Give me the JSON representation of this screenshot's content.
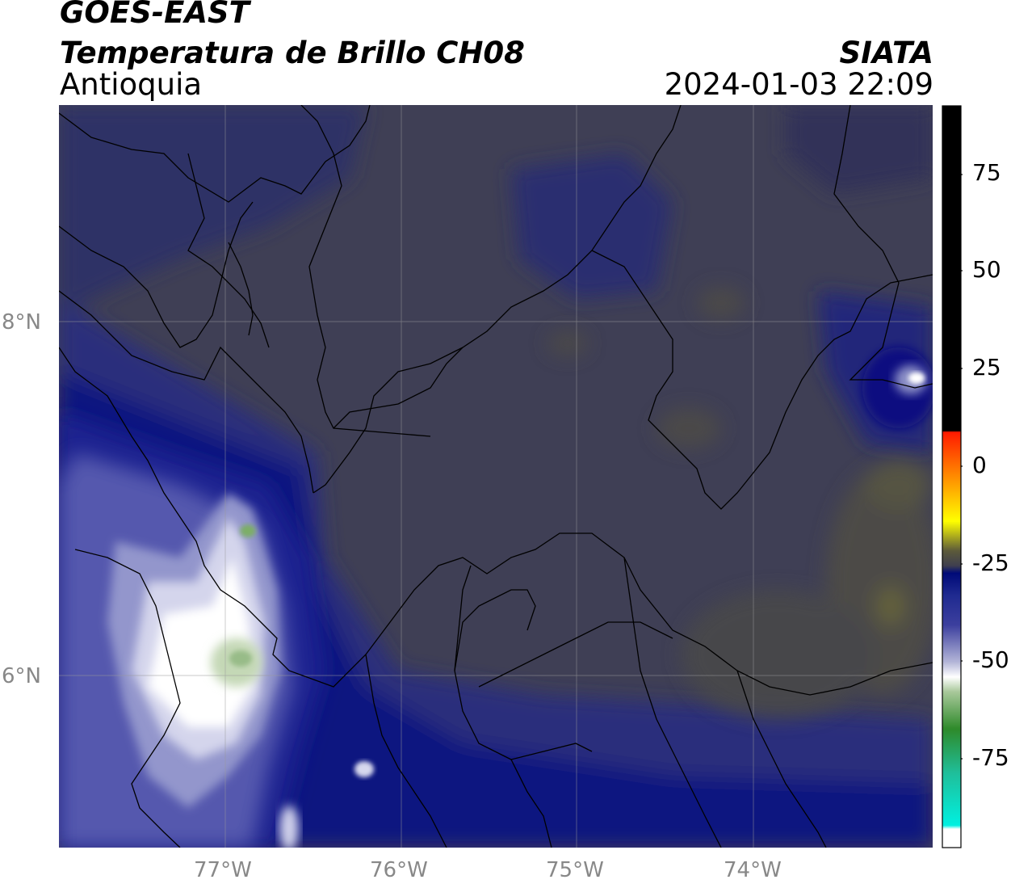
{
  "header": {
    "satellite": "GOES-EAST",
    "product": "Temperatura de Brillo CH08",
    "region": "Antioquia",
    "organization": "SIATA",
    "datetime": "2024-01-03 22:09"
  },
  "map": {
    "lat_labels": [
      "8°N",
      "6°N"
    ],
    "lon_labels": [
      "77°W",
      "76°W",
      "75°W",
      "74°W"
    ],
    "gridlines": true
  },
  "colorbar": {
    "tick_labels": [
      "75",
      "50",
      "25",
      "0",
      "-25",
      "-50",
      "-75"
    ],
    "colors": {
      "black": "#000000",
      "red": "#ff1a00",
      "orange": "#ff8c00",
      "yellow": "#ffff00",
      "olive": "#5c5a3a",
      "gray": "#3f3f4f",
      "navy": "#000a78",
      "blue": "#3c3f9e",
      "lavender": "#b4b6d8",
      "white": "#ffffff",
      "light_green": "#a8c89a",
      "green": "#2e8a2a",
      "teal": "#1fbf9b",
      "cyan": "#00f0e0"
    }
  }
}
